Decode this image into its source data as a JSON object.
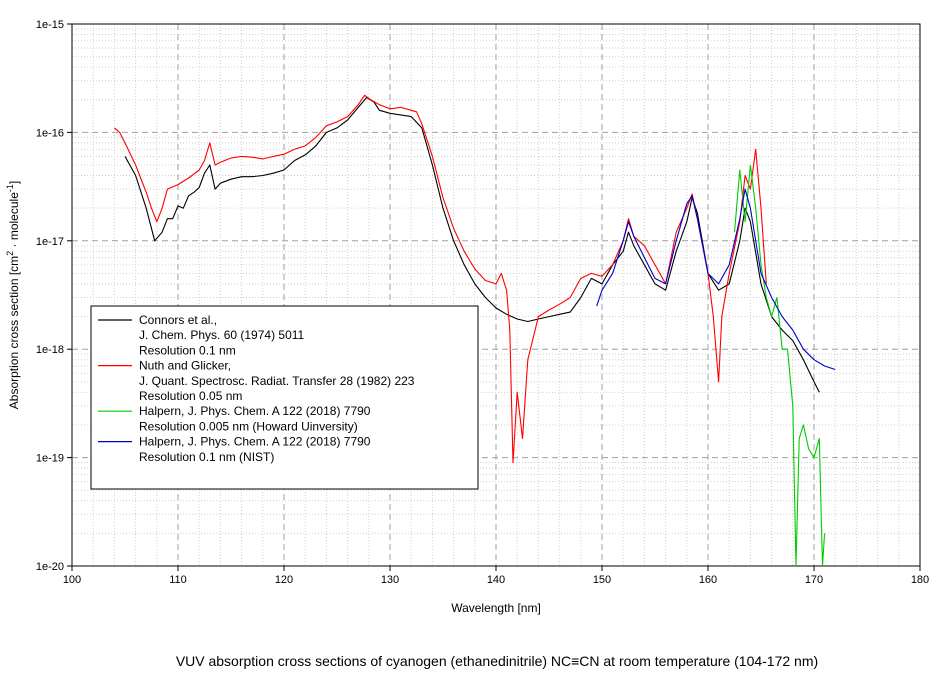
{
  "caption": "VUV absorption cross sections of cyanogen (ethanedinitrile) NC≡CN at room temperature (104-172 nm)",
  "chart_data": {
    "type": "line",
    "xlabel": "Wavelength [nm]",
    "ylabel_parts": [
      "Absorption cross section [cm",
      "2",
      " · molecule",
      "-1",
      "]"
    ],
    "xlim": [
      100,
      180
    ],
    "ylim": [
      1e-20,
      1e-15
    ],
    "yscale": "log",
    "grid": true,
    "legend_position": "lower-left",
    "x_ticks": [
      100,
      110,
      120,
      130,
      140,
      150,
      160,
      170,
      180
    ],
    "x_tick_labels": [
      "100",
      "110",
      "120",
      "130",
      "140",
      "150",
      "160",
      "170",
      "180"
    ],
    "y_ticks": [
      1e-15,
      1e-16,
      1e-17,
      1e-18,
      1e-19,
      1e-20
    ],
    "y_tick_labels": [
      "1e-15",
      "1e-16",
      "1e-17",
      "1e-18",
      "1e-19",
      "1e-20"
    ],
    "series": [
      {
        "legend_lines": [
          "Connors et al.,",
          "J. Chem. Phys. 60 (1974) 5011",
          "Resolution 0.1 nm"
        ],
        "color": "#000000",
        "x": [
          105.0,
          106.0,
          107.0,
          107.8,
          108.5,
          109.0,
          109.5,
          110.0,
          110.5,
          111.0,
          111.5,
          112.0,
          112.5,
          113.0,
          113.5,
          114.0,
          115.0,
          116.0,
          117.0,
          118.0,
          119.0,
          120.0,
          121.0,
          122.0,
          123.0,
          124.0,
          125.0,
          126.0,
          127.0,
          127.8,
          128.5,
          129.0,
          130.0,
          131.0,
          132.0,
          133.0,
          134.0,
          135.0,
          136.0,
          137.0,
          138.0,
          139.0,
          140.0,
          141.0,
          142.0,
          143.0,
          144.0,
          145.0,
          146.0,
          147.0,
          148.0,
          149.0,
          150.0,
          151.0,
          152.0,
          152.5,
          153.0,
          154.0,
          155.0,
          156.0,
          157.0,
          158.0,
          158.5,
          159.0,
          160.0,
          161.0,
          162.0,
          163.0,
          163.5,
          164.0,
          165.0,
          166.0,
          167.0,
          168.0,
          169.0,
          170.0,
          170.5
        ],
        "y": [
          6e-17,
          4e-17,
          2e-17,
          1e-17,
          1.2e-17,
          1.6e-17,
          1.6e-17,
          2.1e-17,
          2e-17,
          2.6e-17,
          2.8e-17,
          3.1e-17,
          4.2e-17,
          5e-17,
          3e-17,
          3.4e-17,
          3.7e-17,
          3.9e-17,
          3.9e-17,
          4e-17,
          4.2e-17,
          4.5e-17,
          5.5e-17,
          6.2e-17,
          7.5e-17,
          1e-16,
          1.1e-16,
          1.3e-16,
          1.7e-16,
          2.1e-16,
          1.9e-16,
          1.6e-16,
          1.5e-16,
          1.45e-16,
          1.4e-16,
          1.1e-16,
          5e-17,
          2e-17,
          1e-17,
          6e-18,
          4e-18,
          3e-18,
          2.4e-18,
          2.1e-18,
          1.9e-18,
          1.8e-18,
          1.9e-18,
          2e-18,
          2.1e-18,
          2.2e-18,
          3e-18,
          4.5e-18,
          4e-18,
          6e-18,
          8e-18,
          1.2e-17,
          9e-18,
          6e-18,
          4e-18,
          3.5e-18,
          8e-18,
          1.5e-17,
          2.5e-17,
          1.8e-17,
          5e-18,
          3.5e-18,
          4e-18,
          1e-17,
          2e-17,
          1.5e-17,
          4e-18,
          2e-18,
          1.5e-18,
          1.2e-18,
          8e-19,
          5e-19,
          4e-19
        ]
      },
      {
        "legend_lines": [
          "Nuth  and Glicker,",
          "J. Quant. Spectrosc. Radiat. Transfer 28 (1982) 223",
          "Resolution 0.05 nm"
        ],
        "color": "#ff0000",
        "x": [
          104.0,
          104.5,
          105.0,
          106.0,
          107.0,
          107.5,
          108.0,
          108.5,
          109.0,
          110.0,
          111.0,
          112.0,
          112.5,
          113.0,
          113.5,
          114.0,
          115.0,
          116.0,
          117.0,
          118.0,
          119.0,
          120.0,
          121.0,
          122.0,
          123.0,
          124.0,
          125.0,
          126.0,
          127.0,
          127.6,
          128.2,
          129.0,
          130.0,
          131.0,
          132.0,
          132.5,
          133.0,
          134.0,
          135.0,
          136.0,
          137.0,
          138.0,
          139.0,
          140.0,
          140.5,
          141.0,
          141.3,
          141.6,
          142.0,
          142.5,
          143.0,
          144.0,
          145.0,
          146.0,
          147.0,
          148.0,
          149.0,
          150.0,
          151.0,
          152.0,
          152.5,
          153.0,
          154.0,
          155.0,
          156.0,
          157.0,
          158.0,
          158.5,
          159.0,
          160.0,
          160.5,
          161.0,
          161.3,
          162.0,
          163.0,
          163.5,
          164.0,
          164.5,
          165.0,
          165.5
        ],
        "y": [
          1.1e-16,
          1e-16,
          8e-17,
          5e-17,
          2.8e-17,
          2e-17,
          1.5e-17,
          2e-17,
          3e-17,
          3.3e-17,
          3.8e-17,
          4.5e-17,
          5.5e-17,
          8e-17,
          5e-17,
          5.3e-17,
          5.8e-17,
          6e-17,
          5.9e-17,
          5.7e-17,
          6e-17,
          6.3e-17,
          7e-17,
          7.5e-17,
          9e-17,
          1.15e-16,
          1.25e-16,
          1.4e-16,
          1.8e-16,
          2.2e-16,
          2e-16,
          1.8e-16,
          1.65e-16,
          1.7e-16,
          1.6e-16,
          1.55e-16,
          1.2e-16,
          6e-17,
          2.5e-17,
          1.3e-17,
          8e-18,
          5.5e-18,
          4.3e-18,
          4e-18,
          5e-18,
          3.5e-18,
          1.5e-18,
          9e-20,
          4e-19,
          1.5e-19,
          8e-19,
          2e-18,
          2.3e-18,
          2.6e-18,
          3e-18,
          4.5e-18,
          5e-18,
          4.7e-18,
          6e-18,
          1e-17,
          1.6e-17,
          1.1e-17,
          9e-18,
          6e-18,
          4e-18,
          1.2e-17,
          2e-17,
          2.7e-17,
          1.6e-17,
          5e-18,
          2e-18,
          5e-19,
          2e-18,
          5e-18,
          1.5e-17,
          4e-17,
          3e-17,
          7e-17,
          2e-17,
          4e-18
        ]
      },
      {
        "legend_lines": [
          "Halpern, J. Phys. Chem. A 122 (2018) 7790",
          "Resolution 0.005 nm (Howard Uinversity)"
        ],
        "color": "#00cc00",
        "x": [
          162.5,
          163.0,
          163.5,
          164.0,
          164.5,
          165.0,
          165.5,
          166.0,
          166.5,
          167.0,
          167.5,
          168.0,
          168.3,
          168.6,
          169.0,
          169.5,
          170.0,
          170.5,
          170.8,
          171.0
        ],
        "y": [
          1.2e-17,
          4.5e-17,
          1.5e-17,
          5e-17,
          2e-17,
          6e-18,
          3e-18,
          2e-18,
          3e-18,
          1e-18,
          1e-18,
          3e-19,
          1e-20,
          1.5e-19,
          2e-19,
          1.2e-19,
          1e-19,
          1.5e-19,
          1e-20,
          2e-20
        ]
      },
      {
        "legend_lines": [
          "Halpern, J. Phys. Chem. A 122 (2018) 7790",
          "Resolution 0.1 nm (NIST)"
        ],
        "color": "#0000cc",
        "x": [
          149.5,
          150.0,
          151.0,
          152.0,
          152.5,
          153.0,
          154.0,
          155.0,
          156.0,
          157.0,
          158.0,
          158.5,
          159.0,
          160.0,
          161.0,
          162.0,
          163.0,
          163.5,
          164.0,
          165.0,
          166.0,
          167.0,
          168.0,
          169.0,
          170.0,
          171.0,
          172.0
        ],
        "y": [
          2.5e-18,
          3.5e-18,
          5e-18,
          1e-17,
          1.5e-17,
          1.1e-17,
          7e-18,
          4.5e-18,
          4e-18,
          1e-17,
          2.2e-17,
          2.6e-17,
          1.6e-17,
          5e-18,
          4e-18,
          6e-18,
          1.6e-17,
          3e-17,
          2e-17,
          5e-18,
          3e-18,
          2e-18,
          1.5e-18,
          1e-18,
          8e-19,
          7e-19,
          6.5e-19
        ]
      }
    ]
  }
}
